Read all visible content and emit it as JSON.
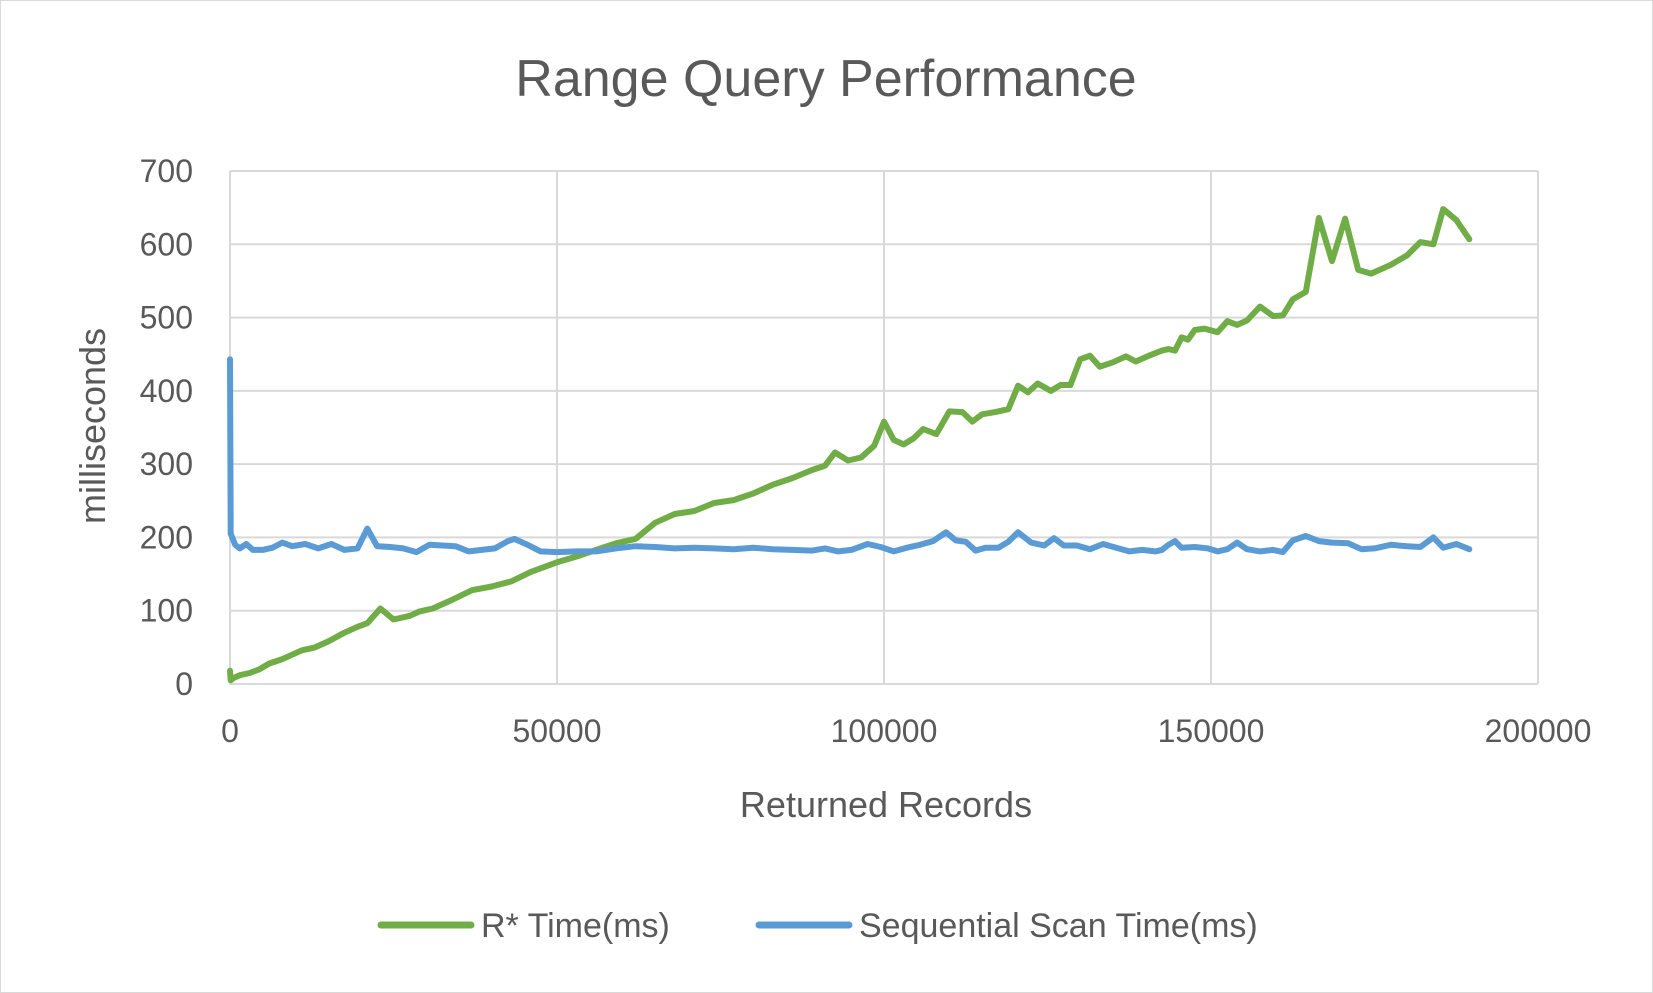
{
  "chart_data": {
    "type": "line",
    "title": "Range Query Performance",
    "xlabel": "Returned Records",
    "ylabel": "milliseconds",
    "xlim": [
      0,
      200000
    ],
    "ylim": [
      0,
      700
    ],
    "x_ticks": [
      "0",
      "50000",
      "100000",
      "150000",
      "200000"
    ],
    "y_ticks": [
      "0",
      "100",
      "200",
      "300",
      "400",
      "500",
      "600",
      "700"
    ],
    "grid": true,
    "legend_position": "bottom",
    "series": [
      {
        "name": "R* Time(ms)",
        "color": "#70ad47",
        "points": [
          [
            0,
            18
          ],
          [
            100,
            5
          ],
          [
            500,
            8
          ],
          [
            1500,
            12
          ],
          [
            3000,
            15
          ],
          [
            4500,
            20
          ],
          [
            6000,
            28
          ],
          [
            8000,
            34
          ],
          [
            11000,
            46
          ],
          [
            13000,
            50
          ],
          [
            15000,
            58
          ],
          [
            17500,
            70
          ],
          [
            19500,
            78
          ],
          [
            21000,
            83
          ],
          [
            23000,
            103
          ],
          [
            25000,
            88
          ],
          [
            27500,
            93
          ],
          [
            29000,
            99
          ],
          [
            31000,
            103
          ],
          [
            34000,
            115
          ],
          [
            37000,
            128
          ],
          [
            40000,
            133
          ],
          [
            43000,
            140
          ],
          [
            46000,
            153
          ],
          [
            50000,
            166
          ],
          [
            53000,
            174
          ],
          [
            56000,
            183
          ],
          [
            59000,
            192
          ],
          [
            62000,
            198
          ],
          [
            65000,
            220
          ],
          [
            68000,
            232
          ],
          [
            71000,
            236
          ],
          [
            74000,
            247
          ],
          [
            77000,
            251
          ],
          [
            80000,
            260
          ],
          [
            83000,
            272
          ],
          [
            86000,
            281
          ],
          [
            89000,
            292
          ],
          [
            91000,
            298
          ],
          [
            92500,
            316
          ],
          [
            94500,
            305
          ],
          [
            96500,
            309
          ],
          [
            98500,
            325
          ],
          [
            100000,
            358
          ],
          [
            101500,
            333
          ],
          [
            103000,
            327
          ],
          [
            104500,
            335
          ],
          [
            106000,
            348
          ],
          [
            108000,
            341
          ],
          [
            110000,
            372
          ],
          [
            112000,
            371
          ],
          [
            113500,
            358
          ],
          [
            115000,
            368
          ],
          [
            117000,
            371
          ],
          [
            119000,
            375
          ],
          [
            120500,
            407
          ],
          [
            122000,
            398
          ],
          [
            123500,
            410
          ],
          [
            125500,
            400
          ],
          [
            127000,
            408
          ],
          [
            128500,
            408
          ],
          [
            130000,
            443
          ],
          [
            131500,
            448
          ],
          [
            133000,
            433
          ],
          [
            135000,
            439
          ],
          [
            137000,
            447
          ],
          [
            138500,
            440
          ],
          [
            140500,
            448
          ],
          [
            142500,
            455
          ],
          [
            143500,
            457
          ],
          [
            144500,
            455
          ],
          [
            145500,
            473
          ],
          [
            146500,
            470
          ],
          [
            147500,
            483
          ],
          [
            149000,
            485
          ],
          [
            151000,
            480
          ],
          [
            152500,
            495
          ],
          [
            154000,
            490
          ],
          [
            155500,
            496
          ],
          [
            157500,
            515
          ],
          [
            159500,
            502
          ],
          [
            161000,
            503
          ],
          [
            162500,
            525
          ],
          [
            164500,
            535
          ],
          [
            166500,
            636
          ],
          [
            168500,
            577
          ],
          [
            170500,
            635
          ],
          [
            172500,
            565
          ],
          [
            174500,
            560
          ],
          [
            177500,
            572
          ],
          [
            180000,
            585
          ],
          [
            182000,
            603
          ],
          [
            184000,
            600
          ],
          [
            185500,
            648
          ],
          [
            187500,
            633
          ],
          [
            189500,
            607
          ]
        ]
      },
      {
        "name": "Sequential Scan Time(ms)",
        "color": "#5b9bd5",
        "points": [
          [
            0,
            443
          ],
          [
            100,
            205
          ],
          [
            800,
            190
          ],
          [
            1500,
            185
          ],
          [
            2500,
            191
          ],
          [
            3500,
            183
          ],
          [
            5000,
            183
          ],
          [
            6500,
            186
          ],
          [
            8000,
            193
          ],
          [
            9500,
            188
          ],
          [
            11500,
            191
          ],
          [
            13500,
            185
          ],
          [
            15500,
            191
          ],
          [
            17500,
            183
          ],
          [
            19500,
            185
          ],
          [
            21000,
            212
          ],
          [
            22500,
            188
          ],
          [
            24500,
            187
          ],
          [
            26500,
            185
          ],
          [
            28500,
            180
          ],
          [
            30500,
            190
          ],
          [
            32500,
            189
          ],
          [
            34500,
            188
          ],
          [
            36500,
            181
          ],
          [
            38500,
            183
          ],
          [
            40500,
            185
          ],
          [
            42500,
            195
          ],
          [
            43500,
            198
          ],
          [
            45500,
            190
          ],
          [
            47500,
            181
          ],
          [
            50000,
            180
          ],
          [
            53000,
            181
          ],
          [
            56000,
            181
          ],
          [
            59000,
            185
          ],
          [
            62000,
            188
          ],
          [
            65000,
            187
          ],
          [
            68000,
            185
          ],
          [
            71000,
            186
          ],
          [
            74000,
            185
          ],
          [
            77000,
            184
          ],
          [
            80000,
            186
          ],
          [
            83000,
            184
          ],
          [
            86000,
            183
          ],
          [
            89000,
            182
          ],
          [
            91000,
            185
          ],
          [
            93000,
            181
          ],
          [
            95000,
            183
          ],
          [
            97500,
            191
          ],
          [
            99500,
            187
          ],
          [
            101500,
            181
          ],
          [
            103500,
            186
          ],
          [
            105500,
            190
          ],
          [
            107500,
            195
          ],
          [
            109500,
            207
          ],
          [
            111000,
            196
          ],
          [
            112500,
            194
          ],
          [
            114000,
            182
          ],
          [
            115500,
            186
          ],
          [
            117500,
            186
          ],
          [
            119000,
            194
          ],
          [
            120500,
            207
          ],
          [
            122500,
            193
          ],
          [
            124500,
            189
          ],
          [
            126000,
            199
          ],
          [
            127500,
            189
          ],
          [
            129500,
            189
          ],
          [
            131500,
            184
          ],
          [
            133500,
            191
          ],
          [
            135500,
            186
          ],
          [
            137500,
            181
          ],
          [
            139500,
            183
          ],
          [
            141500,
            181
          ],
          [
            142500,
            183
          ],
          [
            143500,
            190
          ],
          [
            144500,
            195
          ],
          [
            145500,
            186
          ],
          [
            147500,
            187
          ],
          [
            149500,
            185
          ],
          [
            151000,
            181
          ],
          [
            152500,
            184
          ],
          [
            154000,
            193
          ],
          [
            155500,
            184
          ],
          [
            157500,
            181
          ],
          [
            159500,
            183
          ],
          [
            161000,
            180
          ],
          [
            162500,
            196
          ],
          [
            164500,
            202
          ],
          [
            166500,
            195
          ],
          [
            168500,
            193
          ],
          [
            171000,
            192
          ],
          [
            173000,
            184
          ],
          [
            175000,
            185
          ],
          [
            177500,
            190
          ],
          [
            180000,
            188
          ],
          [
            182000,
            187
          ],
          [
            184000,
            200
          ],
          [
            185500,
            186
          ],
          [
            187500,
            191
          ],
          [
            189500,
            184
          ]
        ]
      }
    ]
  }
}
